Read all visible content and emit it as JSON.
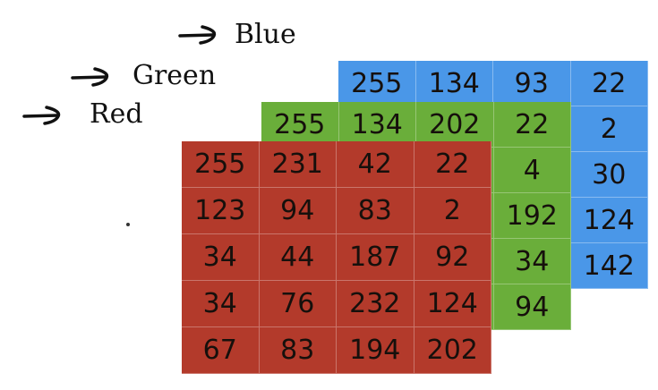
{
  "labels": {
    "blue": "Blue",
    "green": "Green",
    "red": "Red"
  },
  "channels": {
    "blue": [
      [
        "255",
        "134",
        "93",
        "22"
      ],
      [
        "",
        "",
        "",
        "2"
      ],
      [
        "",
        "",
        "",
        "30"
      ],
      [
        "",
        "",
        "",
        "124"
      ],
      [
        "",
        "",
        "",
        "142"
      ]
    ],
    "green": [
      [
        "255",
        "134",
        "202",
        "22"
      ],
      [
        "",
        "",
        "",
        "4"
      ],
      [
        "",
        "",
        "",
        "192"
      ],
      [
        "",
        "",
        "",
        "34"
      ],
      [
        "",
        "",
        "",
        "94"
      ]
    ],
    "red": [
      [
        "255",
        "231",
        "42",
        "22"
      ],
      [
        "123",
        "94",
        "83",
        "2"
      ],
      [
        "34",
        "44",
        "187",
        "92"
      ],
      [
        "34",
        "76",
        "232",
        "124"
      ],
      [
        "67",
        "83",
        "194",
        "202"
      ]
    ]
  },
  "colors": {
    "blue": "#4a97e8",
    "green": "#6aae3a",
    "red": "#b33a2b"
  }
}
